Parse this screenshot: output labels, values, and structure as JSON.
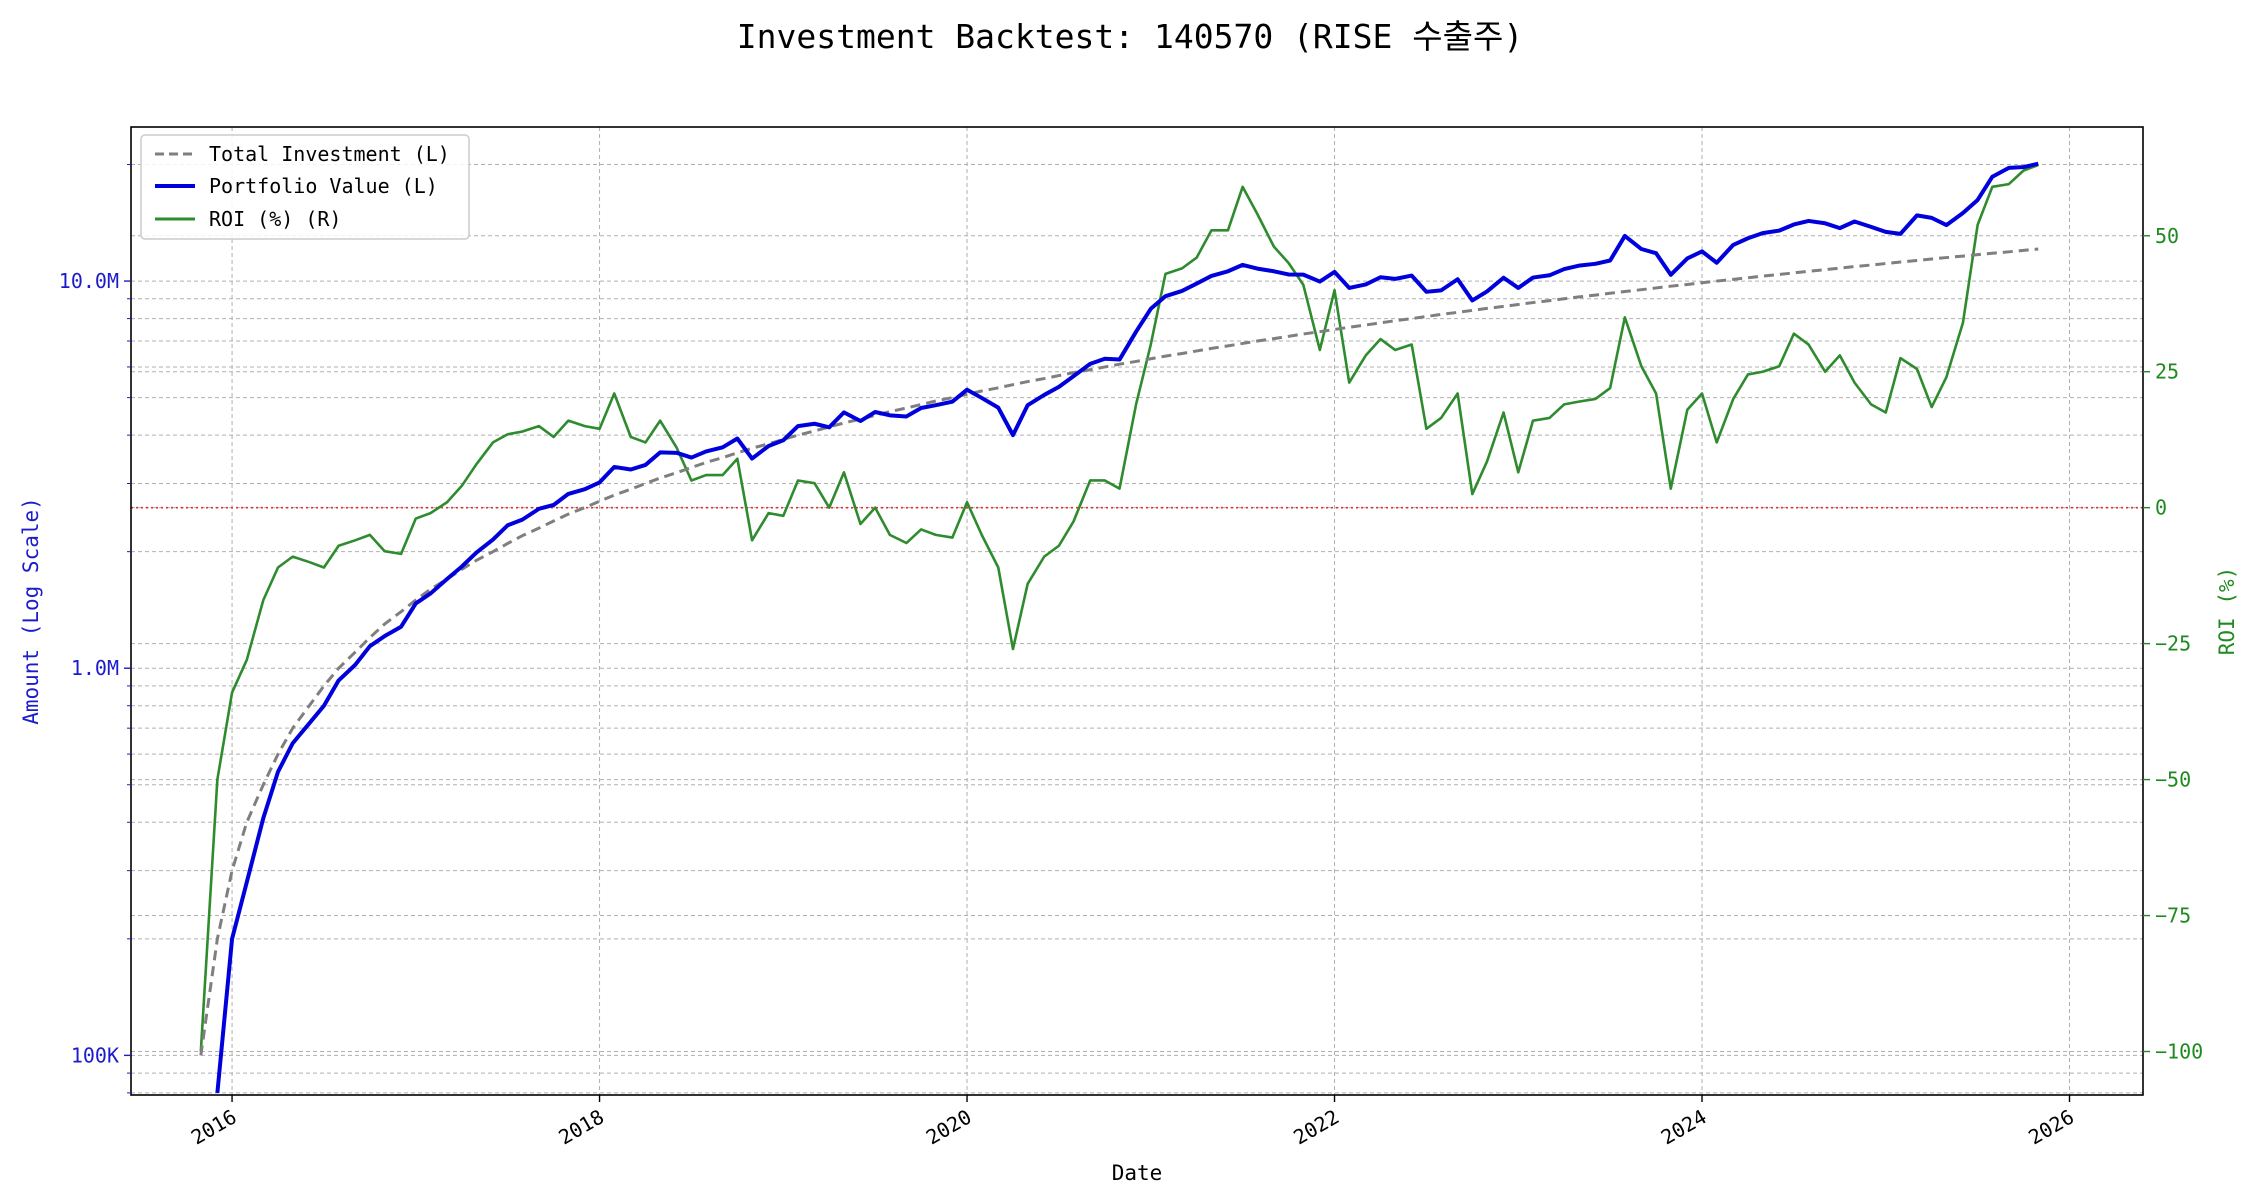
{
  "chart_data": {
    "type": "line",
    "title": "Investment Backtest: 140570 (RISE 수출주)",
    "xlabel": "Date",
    "ylabel_left": "Amount (Log Scale)",
    "ylabel_right": "ROI (%)",
    "left_scale": "log",
    "xlim": [
      2015.45,
      2026.4
    ],
    "ylim_left": [
      79000,
      25000000
    ],
    "ylim_right": [
      -108,
      70
    ],
    "x_ticks": [
      {
        "value": 2016,
        "label": "2016"
      },
      {
        "value": 2018,
        "label": "2018"
      },
      {
        "value": 2020,
        "label": "2020"
      },
      {
        "value": 2022,
        "label": "2022"
      },
      {
        "value": 2024,
        "label": "2024"
      },
      {
        "value": 2026,
        "label": "2026"
      }
    ],
    "y_ticks_left": [
      {
        "value": 100000,
        "label": "100K"
      },
      {
        "value": 1000000,
        "label": "1.0M"
      },
      {
        "value": 10000000,
        "label": "10.0M"
      }
    ],
    "y_ticks_right": [
      {
        "value": 50,
        "label": "50"
      },
      {
        "value": 25,
        "label": "25"
      },
      {
        "value": 0,
        "label": "0"
      },
      {
        "value": -25,
        "label": "−25"
      },
      {
        "value": -50,
        "label": "−50"
      },
      {
        "value": -75,
        "label": "−75"
      },
      {
        "value": -100,
        "label": "−100"
      }
    ],
    "grid": true,
    "legend_position": "top-left",
    "colors": {
      "investment": "#7f7f7f",
      "portfolio": "#0000dd",
      "roi": "#2e8b2e",
      "zero_line": "#e03030",
      "left_axis": "#1c1ccc",
      "right_axis": "#1f8a1f"
    },
    "x": [
      2015.83,
      2015.92,
      2016.0,
      2016.08,
      2016.17,
      2016.25,
      2016.33,
      2016.42,
      2016.5,
      2016.58,
      2016.67,
      2016.75,
      2016.83,
      2016.92,
      2017.0,
      2017.08,
      2017.17,
      2017.25,
      2017.33,
      2017.42,
      2017.5,
      2017.58,
      2017.67,
      2017.75,
      2017.83,
      2017.92,
      2018.0,
      2018.08,
      2018.17,
      2018.25,
      2018.33,
      2018.42,
      2018.5,
      2018.58,
      2018.67,
      2018.75,
      2018.83,
      2018.92,
      2019.0,
      2019.08,
      2019.17,
      2019.25,
      2019.33,
      2019.42,
      2019.5,
      2019.58,
      2019.67,
      2019.75,
      2019.83,
      2019.92,
      2020.0,
      2020.08,
      2020.17,
      2020.25,
      2020.33,
      2020.42,
      2020.5,
      2020.58,
      2020.67,
      2020.75,
      2020.83,
      2020.92,
      2021.0,
      2021.08,
      2021.17,
      2021.25,
      2021.33,
      2021.42,
      2021.5,
      2021.58,
      2021.67,
      2021.75,
      2021.83,
      2021.92,
      2022.0,
      2022.08,
      2022.17,
      2022.25,
      2022.33,
      2022.42,
      2022.5,
      2022.58,
      2022.67,
      2022.75,
      2022.83,
      2022.92,
      2023.0,
      2023.08,
      2023.17,
      2023.25,
      2023.33,
      2023.42,
      2023.5,
      2023.58,
      2023.67,
      2023.75,
      2023.83,
      2023.92,
      2024.0,
      2024.08,
      2024.17,
      2024.25,
      2024.33,
      2024.42,
      2024.5,
      2024.58,
      2024.67,
      2024.75,
      2024.83,
      2024.92,
      2025.0,
      2025.08,
      2025.17,
      2025.25,
      2025.33,
      2025.42,
      2025.5,
      2025.58,
      2025.67,
      2025.75,
      2025.83
    ],
    "series": [
      {
        "name": "Total Investment (L)",
        "axis": "left",
        "style": "dashed",
        "values": [
          100000,
          200000,
          300000,
          400000,
          500000,
          600000,
          700000,
          800000,
          900000,
          1000000,
          1100000,
          1200000,
          1300000,
          1400000,
          1500000,
          1600000,
          1700000,
          1800000,
          1900000,
          2000000,
          2100000,
          2200000,
          2300000,
          2400000,
          2500000,
          2600000,
          2700000,
          2800000,
          2900000,
          3000000,
          3100000,
          3200000,
          3300000,
          3400000,
          3500000,
          3600000,
          3700000,
          3800000,
          3900000,
          4000000,
          4100000,
          4200000,
          4300000,
          4400000,
          4500000,
          4600000,
          4700000,
          4800000,
          4900000,
          5000000,
          5100000,
          5200000,
          5300000,
          5400000,
          5500000,
          5600000,
          5700000,
          5800000,
          5900000,
          6000000,
          6100000,
          6200000,
          6300000,
          6400000,
          6500000,
          6600000,
          6700000,
          6800000,
          6900000,
          7000000,
          7100000,
          7200000,
          7300000,
          7400000,
          7500000,
          7600000,
          7700000,
          7800000,
          7900000,
          8000000,
          8100000,
          8200000,
          8300000,
          8400000,
          8500000,
          8600000,
          8700000,
          8800000,
          8900000,
          9000000,
          9100000,
          9200000,
          9300000,
          9400000,
          9500000,
          9600000,
          9700000,
          9800000,
          9900000,
          10000000,
          10100000,
          10200000,
          10300000,
          10400000,
          10500000,
          10600000,
          10700000,
          10800000,
          10900000,
          11000000,
          11100000,
          11200000,
          11300000,
          11400000,
          11500000,
          11600000,
          11700000,
          11800000,
          11900000,
          12000000,
          12100000
        ]
      },
      {
        "name": "Portfolio Value (L)",
        "axis": "left",
        "style": "solid",
        "values": [
          null,
          80000,
          200000,
          280000,
          410000,
          540000,
          640000,
          720000,
          800000,
          930000,
          1020000,
          1140000,
          1210000,
          1280000,
          1470000,
          1560000,
          1700000,
          1830000,
          1990000,
          2150000,
          2340000,
          2420000,
          2580000,
          2640000,
          2820000,
          2900000,
          3020000,
          3310000,
          3260000,
          3350000,
          3610000,
          3600000,
          3500000,
          3630000,
          3720000,
          3920000,
          3480000,
          3750000,
          3880000,
          4220000,
          4280000,
          4190000,
          4580000,
          4350000,
          4590000,
          4500000,
          4470000,
          4700000,
          4780000,
          4880000,
          5240000,
          4990000,
          4710000,
          4000000,
          4780000,
          5080000,
          5330000,
          5680000,
          6110000,
          6300000,
          6270000,
          7400000,
          8480000,
          9140000,
          9430000,
          9850000,
          10310000,
          10600000,
          11010000,
          10770000,
          10600000,
          10400000,
          10390000,
          9970000,
          10560000,
          9600000,
          9800000,
          10230000,
          10130000,
          10330000,
          9380000,
          9460000,
          10110000,
          8910000,
          9400000,
          10200000,
          9600000,
          10210000,
          10350000,
          10740000,
          10960000,
          11080000,
          11300000,
          13080000,
          12100000,
          11800000,
          10380000,
          11440000,
          11930000,
          11150000,
          12400000,
          12900000,
          13300000,
          13500000,
          14000000,
          14300000,
          14100000,
          13700000,
          14250000,
          13800000,
          13400000,
          13240000,
          14780000,
          14560000,
          13950000,
          14990000,
          16200000,
          18600000,
          19600000,
          19700000,
          20100000
        ]
      },
      {
        "name": "ROI (%) (R)",
        "axis": "right",
        "style": "solid",
        "values": [
          -100,
          -50,
          -34,
          -28,
          -17,
          -11,
          -9,
          -10,
          -11,
          -7,
          -6,
          -5,
          -8,
          -8.5,
          -2,
          -1,
          1,
          4,
          8,
          12,
          13.5,
          14,
          15,
          13,
          16,
          15,
          14.5,
          21,
          13,
          12,
          16,
          11,
          5,
          6,
          6,
          9,
          -6,
          -1,
          -1.5,
          5,
          4.5,
          0,
          6.5,
          -3,
          0,
          -5,
          -6.5,
          -4,
          -5,
          -5.5,
          1,
          -5,
          -11,
          -26,
          -14,
          -9,
          -7,
          -2.5,
          5,
          5,
          3.5,
          19,
          30,
          43,
          44,
          46,
          51,
          51,
          59,
          54,
          48,
          45,
          41,
          29,
          40,
          23,
          28,
          31,
          29,
          30,
          14.5,
          16.5,
          21,
          2.5,
          8.5,
          17.5,
          6.5,
          16,
          16.5,
          19,
          19.5,
          20,
          22,
          35,
          26,
          21,
          3.5,
          18,
          21,
          12,
          20,
          24.5,
          25,
          26,
          32,
          30,
          25,
          28,
          23,
          19,
          17.5,
          27.5,
          25.5,
          18.5,
          24,
          34,
          52,
          59,
          59.5,
          62,
          63
        ]
      }
    ],
    "reference_lines": [
      {
        "axis": "right",
        "value": 0,
        "style": "dotted"
      }
    ]
  }
}
